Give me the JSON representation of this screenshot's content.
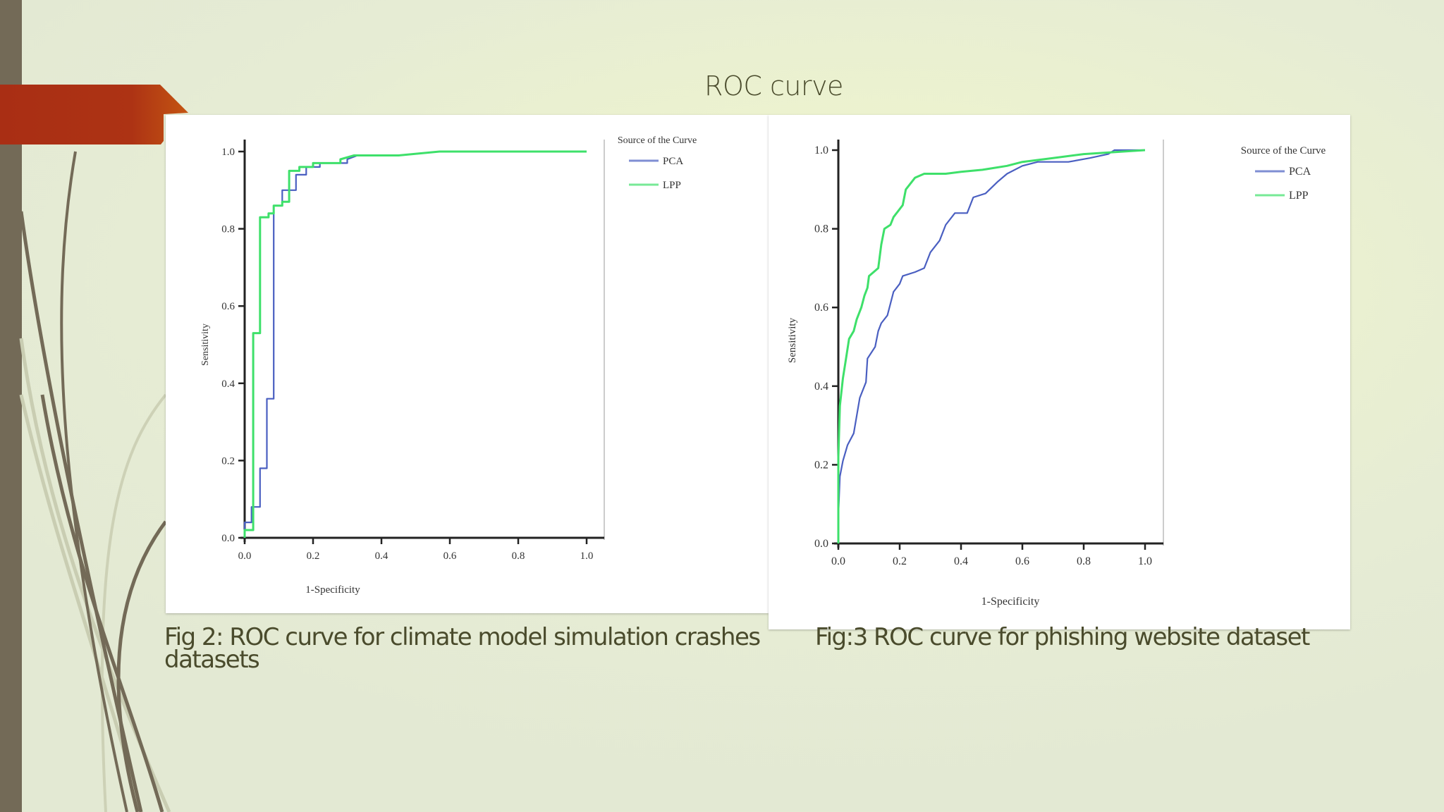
{
  "slide": {
    "title": "ROC curve",
    "captions": [
      "Fig 2: ROC curve for climate model simulation crashes datasets",
      "Fig:3 ROC curve for phishing website  dataset"
    ],
    "colors": {
      "ribbon": "#b03a17",
      "side_bar": "#736a57",
      "text": "#4a4b2c",
      "pca": "#4a5fc1",
      "lpp": "#3ee06a"
    }
  },
  "chart_data": [
    {
      "type": "line",
      "title": "Fig 2: ROC curve for climate model simulation crashes datasets",
      "xlabel": "1-Specificity",
      "ylabel": "Sensitivity",
      "xlim": [
        0,
        1
      ],
      "ylim": [
        0,
        1
      ],
      "x_ticks": [
        "0.0",
        "0.2",
        "0.4",
        "0.6",
        "0.8",
        "1.0"
      ],
      "y_ticks": [
        "0.0",
        "0.2",
        "0.4",
        "0.6",
        "0.8",
        "1.0"
      ],
      "grid": false,
      "legend": {
        "title": "Source of the Curve",
        "position": "top-right",
        "entries": [
          "PCA",
          "LPP"
        ]
      },
      "series": [
        {
          "name": "PCA",
          "color": "#4a5fc1",
          "points": [
            [
              0,
              0
            ],
            [
              0,
              0.04
            ],
            [
              0.02,
              0.04
            ],
            [
              0.02,
              0.08
            ],
            [
              0.045,
              0.08
            ],
            [
              0.045,
              0.18
            ],
            [
              0.065,
              0.18
            ],
            [
              0.065,
              0.36
            ],
            [
              0.085,
              0.36
            ],
            [
              0.085,
              0.86
            ],
            [
              0.11,
              0.86
            ],
            [
              0.11,
              0.9
            ],
            [
              0.15,
              0.9
            ],
            [
              0.15,
              0.94
            ],
            [
              0.18,
              0.94
            ],
            [
              0.18,
              0.96
            ],
            [
              0.22,
              0.96
            ],
            [
              0.22,
              0.97
            ],
            [
              0.3,
              0.97
            ],
            [
              0.3,
              0.98
            ],
            [
              0.33,
              0.99
            ],
            [
              0.45,
              0.99
            ],
            [
              0.57,
              1.0
            ],
            [
              1.0,
              1.0
            ]
          ]
        },
        {
          "name": "LPP",
          "color": "#3ee06a",
          "points": [
            [
              0,
              0
            ],
            [
              0,
              0.02
            ],
            [
              0.025,
              0.02
            ],
            [
              0.025,
              0.53
            ],
            [
              0.045,
              0.53
            ],
            [
              0.045,
              0.83
            ],
            [
              0.07,
              0.83
            ],
            [
              0.07,
              0.84
            ],
            [
              0.085,
              0.84
            ],
            [
              0.085,
              0.86
            ],
            [
              0.11,
              0.86
            ],
            [
              0.11,
              0.87
            ],
            [
              0.13,
              0.87
            ],
            [
              0.13,
              0.95
            ],
            [
              0.16,
              0.95
            ],
            [
              0.16,
              0.96
            ],
            [
              0.2,
              0.96
            ],
            [
              0.2,
              0.97
            ],
            [
              0.28,
              0.97
            ],
            [
              0.28,
              0.98
            ],
            [
              0.32,
              0.99
            ],
            [
              0.45,
              0.99
            ],
            [
              0.57,
              1.0
            ],
            [
              1.0,
              1.0
            ]
          ]
        }
      ]
    },
    {
      "type": "line",
      "title": "Fig:3 ROC curve for phishing website  dataset",
      "xlabel": "1-Specificity",
      "ylabel": "Sensitivity",
      "xlim": [
        0,
        1
      ],
      "ylim": [
        0,
        1
      ],
      "x_ticks": [
        "0.0",
        "0.2",
        "0.4",
        "0.6",
        "0.8",
        "1.0"
      ],
      "y_ticks": [
        "0.0",
        "0.2",
        "0.4",
        "0.6",
        "0.8",
        "1.0"
      ],
      "grid": false,
      "legend": {
        "title": "Source of the Curve",
        "position": "top-right",
        "entries": [
          "PCA",
          "LPP"
        ]
      },
      "series": [
        {
          "name": "PCA",
          "color": "#4a5fc1",
          "points": [
            [
              0,
              0.07
            ],
            [
              0.005,
              0.17
            ],
            [
              0.015,
              0.21
            ],
            [
              0.03,
              0.25
            ],
            [
              0.05,
              0.28
            ],
            [
              0.07,
              0.37
            ],
            [
              0.09,
              0.41
            ],
            [
              0.095,
              0.47
            ],
            [
              0.12,
              0.5
            ],
            [
              0.13,
              0.54
            ],
            [
              0.14,
              0.56
            ],
            [
              0.16,
              0.58
            ],
            [
              0.18,
              0.64
            ],
            [
              0.2,
              0.66
            ],
            [
              0.21,
              0.68
            ],
            [
              0.25,
              0.69
            ],
            [
              0.28,
              0.7
            ],
            [
              0.3,
              0.74
            ],
            [
              0.33,
              0.77
            ],
            [
              0.35,
              0.81
            ],
            [
              0.38,
              0.84
            ],
            [
              0.42,
              0.84
            ],
            [
              0.44,
              0.88
            ],
            [
              0.48,
              0.89
            ],
            [
              0.52,
              0.92
            ],
            [
              0.55,
              0.94
            ],
            [
              0.6,
              0.96
            ],
            [
              0.65,
              0.97
            ],
            [
              0.75,
              0.97
            ],
            [
              0.82,
              0.98
            ],
            [
              0.88,
              0.99
            ],
            [
              0.9,
              1.0
            ],
            [
              1.0,
              1.0
            ]
          ]
        },
        {
          "name": "LPP",
          "color": "#3ee06a",
          "points": [
            [
              0,
              0
            ],
            [
              0,
              0.22
            ],
            [
              0.005,
              0.35
            ],
            [
              0.015,
              0.42
            ],
            [
              0.025,
              0.47
            ],
            [
              0.035,
              0.52
            ],
            [
              0.05,
              0.54
            ],
            [
              0.06,
              0.57
            ],
            [
              0.075,
              0.6
            ],
            [
              0.085,
              0.63
            ],
            [
              0.095,
              0.65
            ],
            [
              0.1,
              0.68
            ],
            [
              0.13,
              0.7
            ],
            [
              0.14,
              0.76
            ],
            [
              0.15,
              0.8
            ],
            [
              0.17,
              0.81
            ],
            [
              0.18,
              0.83
            ],
            [
              0.21,
              0.86
            ],
            [
              0.22,
              0.9
            ],
            [
              0.25,
              0.93
            ],
            [
              0.28,
              0.94
            ],
            [
              0.35,
              0.94
            ],
            [
              0.4,
              0.945
            ],
            [
              0.47,
              0.95
            ],
            [
              0.55,
              0.96
            ],
            [
              0.6,
              0.97
            ],
            [
              0.7,
              0.98
            ],
            [
              0.8,
              0.99
            ],
            [
              1.0,
              1.0
            ]
          ]
        }
      ]
    }
  ]
}
